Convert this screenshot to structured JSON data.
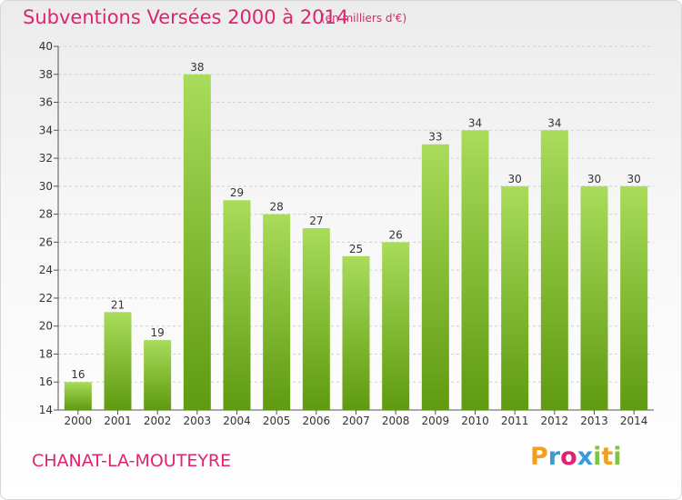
{
  "header": {
    "title": "Subventions Versées 2000 à 2014",
    "subtitle": "(en milliers d'€)"
  },
  "footer": {
    "commune": "CHANAT-LA-MOUTEYRE",
    "logo_letters": [
      "P",
      "r",
      "o",
      "x",
      "i",
      "t",
      "i"
    ],
    "logo_colors": [
      "#f0a020",
      "#3a9bd8",
      "#e0236f",
      "#3a9bd8",
      "#80c342",
      "#f0a020",
      "#80c342"
    ]
  },
  "colors": {
    "accent": "#e0236f",
    "bar_light": "#a8dc5a",
    "bar_dark": "#5f9a10",
    "grid": "#cfcfcf",
    "axis": "#555555"
  },
  "chart_data": {
    "type": "bar",
    "categories": [
      "2000",
      "2001",
      "2002",
      "2003",
      "2004",
      "2005",
      "2006",
      "2007",
      "2008",
      "2009",
      "2010",
      "2011",
      "2012",
      "2013",
      "2014"
    ],
    "values": [
      16,
      21,
      19,
      38,
      29,
      28,
      27,
      25,
      26,
      33,
      34,
      30,
      34,
      30,
      30
    ],
    "data_labels": [
      "16",
      "21",
      "19",
      "38",
      "29",
      "28",
      "27",
      "25",
      "26",
      "33",
      "34",
      "30",
      "34",
      "30",
      "30"
    ],
    "y_ticks": [
      "14",
      "16",
      "18",
      "20",
      "22",
      "24",
      "26",
      "28",
      "30",
      "32",
      "34",
      "36",
      "38",
      "40"
    ],
    "ylim": [
      14,
      40
    ],
    "grid": true,
    "legend": "none"
  }
}
